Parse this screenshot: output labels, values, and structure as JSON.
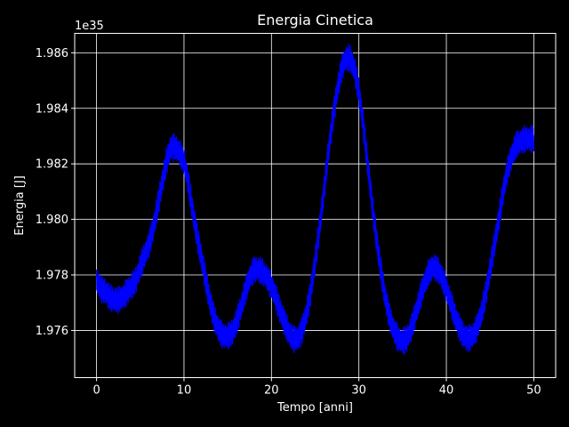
{
  "chart_data": {
    "type": "line",
    "title": "Energia Cinetica",
    "xlabel": "Tempo [anni]",
    "ylabel": "Energia [J]",
    "y_offset_label": "1e35",
    "xlim": [
      -2.5,
      52.5
    ],
    "ylim": [
      1.9743,
      1.9867
    ],
    "x_ticks": [
      0,
      10,
      20,
      30,
      40,
      50
    ],
    "x_tick_labels": [
      "0",
      "10",
      "20",
      "30",
      "40",
      "50"
    ],
    "y_ticks": [
      1.976,
      1.978,
      1.98,
      1.982,
      1.984,
      1.986
    ],
    "y_tick_labels": [
      "1.976",
      "1.978",
      "1.980",
      "1.982",
      "1.984",
      "1.986"
    ],
    "grid": true,
    "series": [
      {
        "color": "#0000ff",
        "note_values": "trend of energy (units of 1e35 J) sampled every 0.5 anni; plotted line has fast oscillation of about ±0.0004 around it",
        "x": [
          0,
          0.5,
          1,
          1.5,
          2,
          2.5,
          3,
          3.5,
          4,
          4.5,
          5,
          5.5,
          6,
          6.5,
          7,
          7.5,
          8,
          8.5,
          9,
          9.5,
          10,
          10.5,
          11,
          11.5,
          12,
          12.5,
          13,
          13.5,
          14,
          14.5,
          15,
          15.5,
          16,
          16.5,
          17,
          17.5,
          18,
          18.5,
          19,
          19.5,
          20,
          20.5,
          21,
          21.5,
          22,
          22.5,
          23,
          23.5,
          24,
          24.5,
          25,
          25.5,
          26,
          26.5,
          27,
          27.5,
          28,
          28.5,
          29,
          29.5,
          30,
          30.5,
          31,
          31.5,
          32,
          32.5,
          33,
          33.5,
          34,
          34.5,
          35,
          35.5,
          36,
          36.5,
          37,
          37.5,
          38,
          38.5,
          39,
          39.5,
          40,
          40.5,
          41,
          41.5,
          42,
          42.5,
          43,
          43.5,
          44,
          44.5,
          45,
          45.5,
          46,
          46.5,
          47,
          47.5,
          48,
          48.5,
          49,
          49.5,
          50
        ],
        "y": [
          1.9778,
          1.9775,
          1.9774,
          1.9772,
          1.9771,
          1.9771,
          1.9772,
          1.9774,
          1.9776,
          1.9778,
          1.9783,
          1.9787,
          1.9791,
          1.9797,
          1.9805,
          1.9813,
          1.9821,
          1.9826,
          1.9826,
          1.9824,
          1.9821,
          1.9813,
          1.9803,
          1.9794,
          1.9786,
          1.9778,
          1.977,
          1.9764,
          1.976,
          1.9758,
          1.9758,
          1.9759,
          1.9763,
          1.9768,
          1.9774,
          1.9779,
          1.9782,
          1.9782,
          1.9781,
          1.9779,
          1.9776,
          1.9772,
          1.9767,
          1.9763,
          1.9759,
          1.9757,
          1.9757,
          1.976,
          1.9766,
          1.9774,
          1.9785,
          1.9797,
          1.981,
          1.9824,
          1.9836,
          1.9846,
          1.9854,
          1.9858,
          1.9858,
          1.9854,
          1.9846,
          1.9834,
          1.982,
          1.9806,
          1.9793,
          1.9782,
          1.9772,
          1.9765,
          1.976,
          1.9757,
          1.9756,
          1.9757,
          1.9761,
          1.9766,
          1.9772,
          1.9777,
          1.9781,
          1.9783,
          1.9782,
          1.9779,
          1.9775,
          1.977,
          1.9765,
          1.9761,
          1.9758,
          1.9757,
          1.9758,
          1.9761,
          1.9766,
          1.9773,
          1.9782,
          1.9791,
          1.98,
          1.981,
          1.9818,
          1.9823,
          1.9827,
          1.9828,
          1.9829,
          1.9829,
          1.9829
        ]
      }
    ]
  }
}
